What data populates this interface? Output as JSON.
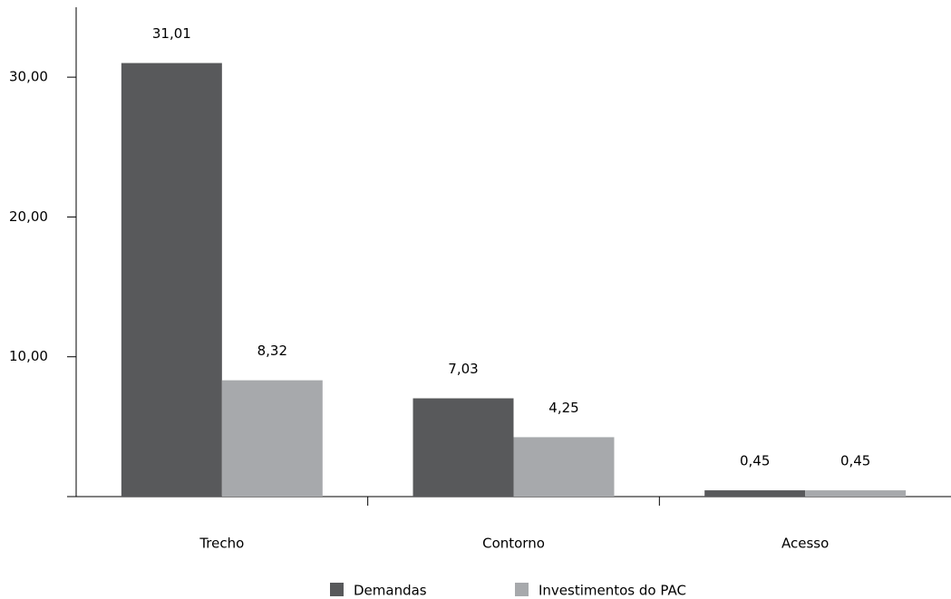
{
  "chart_data": {
    "type": "bar",
    "categories": [
      "Trecho",
      "Contorno",
      "Acesso"
    ],
    "series": [
      {
        "name": "Demandas",
        "color": "#58595b",
        "values": [
          31.01,
          7.03,
          0.45
        ],
        "value_labels": [
          "31,01",
          "7,03",
          "0,45"
        ]
      },
      {
        "name": "Investimentos do PAC",
        "color": "#a7a9ac",
        "values": [
          8.32,
          4.25,
          0.45
        ],
        "value_labels": [
          "8,32",
          "4,25",
          "0,45"
        ]
      }
    ],
    "ylim": [
      0,
      35
    ],
    "yticks": [
      {
        "value": 10,
        "label": "10,00"
      },
      {
        "value": 20,
        "label": "20,00"
      },
      {
        "value": 30,
        "label": "30,00"
      }
    ],
    "grid": false
  }
}
